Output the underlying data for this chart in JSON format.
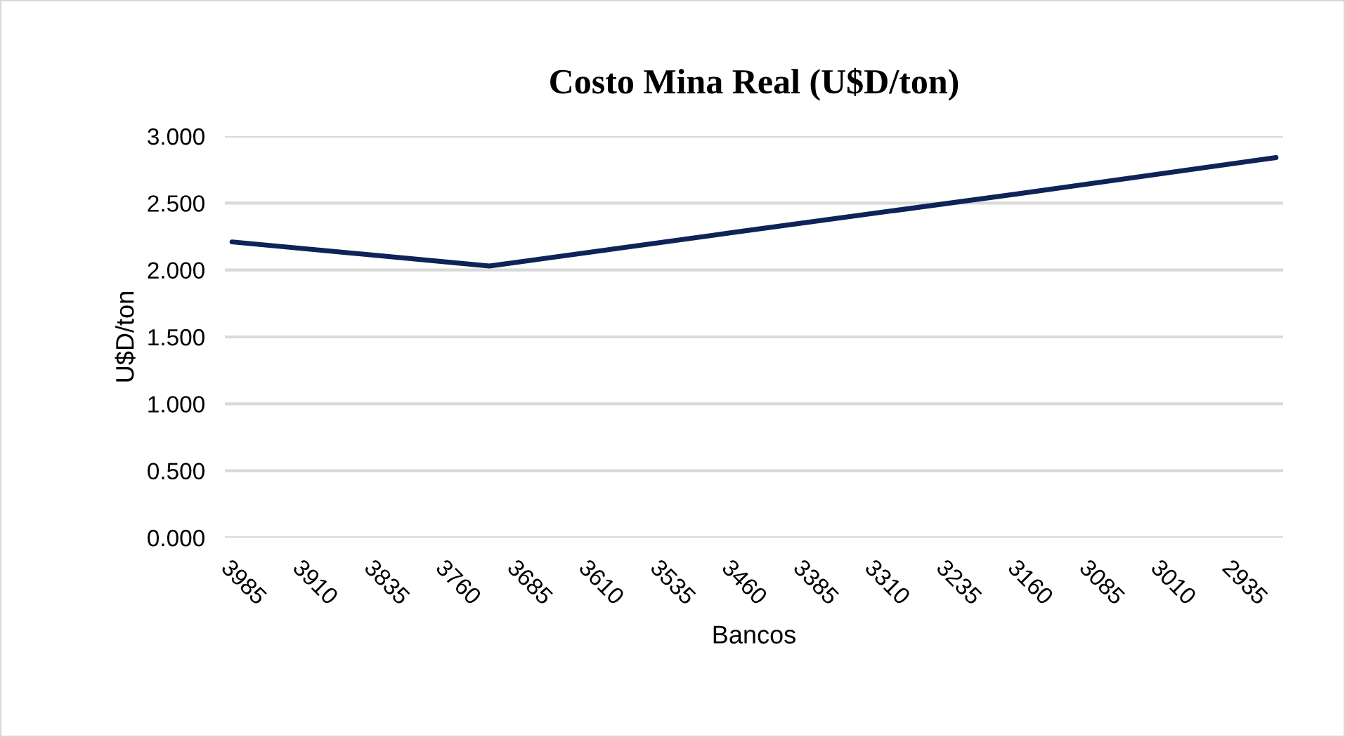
{
  "chart_data": {
    "type": "line",
    "title": "Costo Mina Real (U$D/ton)",
    "xlabel": "Bancos",
    "ylabel": "U$D/ton",
    "series": [
      {
        "color": "#0e2357",
        "x": [
          3985,
          3715,
          3460,
          3160,
          2890
        ],
        "values": [
          2.21,
          2.03,
          2.28,
          2.57,
          2.84
        ]
      }
    ],
    "xlim": [
      3992.5,
      2882.5
    ],
    "xticks": [
      3985,
      3910,
      3835,
      3760,
      3685,
      3610,
      3535,
      3460,
      3385,
      3310,
      3235,
      3160,
      3085,
      3010,
      2935
    ],
    "ylim": [
      0,
      3
    ],
    "yticks": [
      {
        "value": 0,
        "label": "0.000"
      },
      {
        "value": 0.5,
        "label": "0.500"
      },
      {
        "value": 1,
        "label": "1.000"
      },
      {
        "value": 1.5,
        "label": "1.500"
      },
      {
        "value": 2,
        "label": "2.000"
      },
      {
        "value": 2.5,
        "label": "2.500"
      },
      {
        "value": 3,
        "label": "3.000"
      }
    ],
    "grid": "y",
    "legend": false,
    "marker": "none",
    "line_style": "solid"
  }
}
